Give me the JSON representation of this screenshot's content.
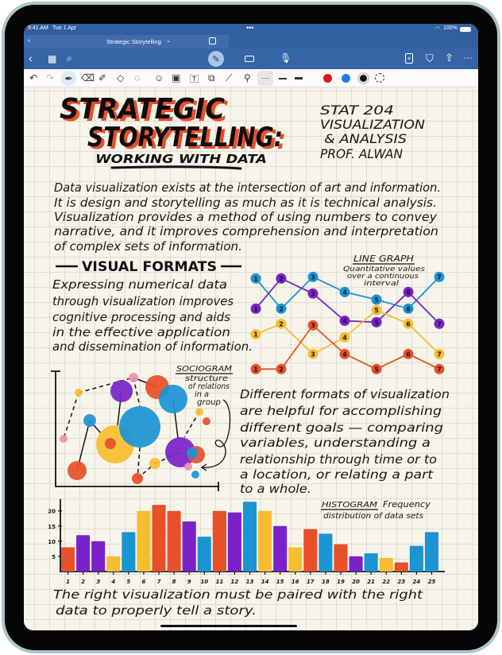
{
  "status_bar": {
    "time": "9:41 AM",
    "date": "Tue 1 Apr",
    "battery": "100%"
  },
  "tab": {
    "title": "Strategic Storytelling",
    "close_icon": "close-icon",
    "chevron": "chevron-down-icon"
  },
  "nav": {
    "icons": [
      "back-icon",
      "grid-icon",
      "search-icon",
      "pen-mode-icon",
      "keyboard-icon",
      "microphone-icon",
      "add-page-icon",
      "bookmark-icon",
      "share-icon",
      "more-icon"
    ]
  },
  "toolbar": {
    "tools": [
      "undo",
      "redo",
      "pen",
      "eraser",
      "highlighter",
      "shapes",
      "lasso",
      "sticker",
      "image",
      "text-box",
      "scan",
      "ruler",
      "laser-pointer"
    ],
    "selected_tool": "pen",
    "colors": [
      "#d9161c",
      "#1e7cf2",
      "#111111"
    ],
    "selected_color": "#111111"
  },
  "colors": {
    "red": "#e8502a",
    "purple": "#7a22c8",
    "yellow": "#f7bd32",
    "blue": "#1b94d4",
    "pink": "#ef8fb0",
    "header": "#30609f"
  },
  "note": {
    "title_line1": "STRATEGIC",
    "title_line2": "STORYTELLING:",
    "subtitle": "WORKING WITH DATA",
    "course": [
      "STAT 204",
      "VISUALIZATION",
      "& ANALYSIS",
      "PROF. ALWAN"
    ],
    "intro": [
      "Data visualization exists at the intersection of art and information.",
      "It is design and storytelling as much as it is technical analysis.",
      "Visualization provides a method of using numbers to convey",
      "narrative, and it improves comprehension and interpretation",
      "of complex sets of information."
    ],
    "section_heading": "VISUAL FORMATS",
    "formats_text": [
      "Expressing numerical data",
      "through visualization improves",
      "cognitive processing and aids",
      "in the effective application",
      "and dissemination of information."
    ],
    "line_graph_label": "LINE GRAPH",
    "line_graph_desc": [
      "Quantitative values",
      "over a continuous",
      "interval"
    ],
    "sociogram_label": "SOCIOGRAM",
    "sociogram_desc": [
      "structure",
      "of relations",
      "in a",
      "group"
    ],
    "goals_text": [
      "Different formats of visualization",
      "are helpful for accomplishing",
      "different goals — comparing",
      "variables, understanding a",
      "relationship through time or to",
      "a location, or relating a part",
      "to a whole."
    ],
    "histogram_label": "HISTOGRAM",
    "histogram_desc1": "Frequency",
    "histogram_desc2": "distribution of data sets",
    "conclusion": [
      "The right visualization must be paired with the right",
      "data to properly tell a story."
    ]
  },
  "chart_data": [
    {
      "type": "line",
      "title": "LINE GRAPH",
      "point_labels": [
        "1",
        "2",
        "3",
        "4",
        "5",
        "6",
        "7"
      ],
      "series": [
        {
          "color": "blue",
          "values": [
            6.3,
            4.3,
            6.4,
            5.4,
            4.9,
            4.3,
            6.4
          ]
        },
        {
          "color": "purple",
          "values": [
            4.3,
            6.3,
            5.3,
            3.5,
            3.4,
            5.4,
            3.3
          ]
        },
        {
          "color": "yellow",
          "values": [
            2.6,
            3.3,
            1.3,
            2.4,
            4.2,
            3.3,
            1.3
          ]
        },
        {
          "color": "red",
          "values": [
            0.3,
            0.3,
            3.2,
            1.3,
            0.3,
            1.3,
            0.3
          ]
        }
      ]
    },
    {
      "type": "bar",
      "title": "HISTOGRAM",
      "ylim": [
        0,
        24
      ],
      "yticks": [
        "5",
        "10",
        "15",
        "20"
      ],
      "categories": [
        "1",
        "2",
        "3",
        "4",
        "5",
        "6",
        "7",
        "8",
        "9",
        "10",
        "11",
        "12",
        "13",
        "14",
        "15",
        "16",
        "17",
        "18",
        "19",
        "20",
        "21",
        "22",
        "23",
        "24",
        "25"
      ],
      "values": [
        8,
        12,
        10,
        5,
        13,
        20,
        22,
        20,
        16.5,
        11.5,
        20,
        19.5,
        23,
        20,
        15,
        8,
        14,
        12.5,
        9,
        5,
        6,
        4.5,
        3,
        8.5,
        13
      ],
      "bar_colors": [
        "red",
        "purple",
        "purple",
        "yellow",
        "blue",
        "yellow",
        "red",
        "red",
        "purple",
        "blue",
        "red",
        "purple",
        "blue",
        "yellow",
        "purple",
        "yellow",
        "red",
        "blue",
        "red",
        "purple",
        "blue",
        "yellow",
        "red",
        "blue",
        "blue"
      ]
    }
  ]
}
